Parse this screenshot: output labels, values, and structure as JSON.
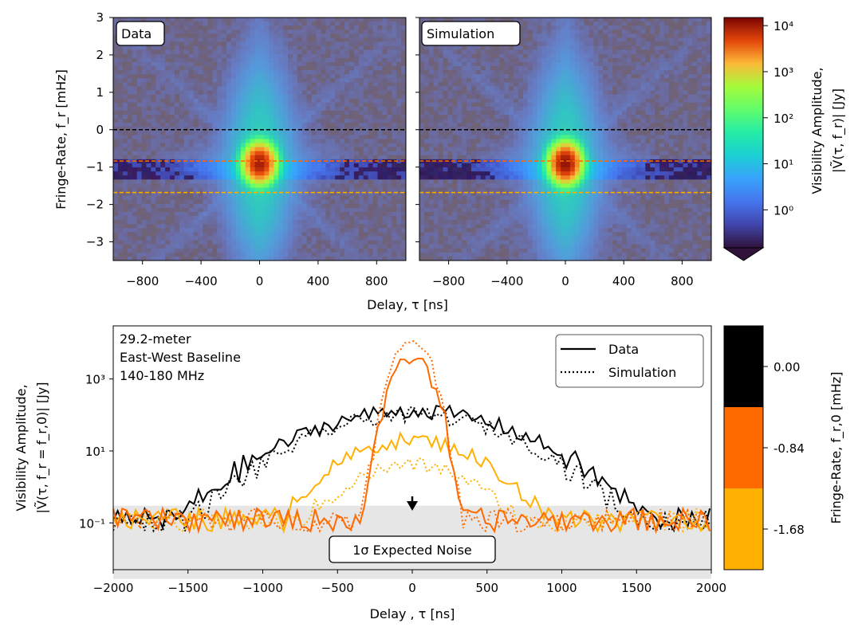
{
  "colors": {
    "data": "#000000",
    "fr_0_00": "#000000",
    "fr_m0_84": "#ff6a00",
    "fr_m1_68": "#ffb000",
    "noise_band": "#e6e6e6",
    "wf_background": "#8f8a94",
    "wf_blue": "#6fa8e8",
    "wf_dark_band": "#2c1a55"
  },
  "chart_data": [
    {
      "type": "heatmap",
      "panel": "Data",
      "label": "Data",
      "xlabel": "Delay, τ [ns]",
      "ylabel": "Fringe-Rate, f_r [mHz]",
      "xlim": [
        -1000,
        1000
      ],
      "ylim": [
        -3.5,
        3
      ],
      "xticks": [
        "−800",
        "−400",
        "0",
        "400",
        "800"
      ],
      "yticks": [
        "3",
        "2",
        "1",
        "0",
        "−1",
        "−2",
        "−3"
      ],
      "peak": {
        "delay_ns": 0,
        "fringe_rate_mHz": -0.9,
        "amplitude_Jy": 10000
      },
      "reference_lines_mHz": [
        0.0,
        -0.84,
        -1.68
      ]
    },
    {
      "type": "heatmap",
      "panel": "Simulation",
      "label": "Simulation",
      "xlabel": "Delay, τ [ns]",
      "xlim": [
        -1000,
        1000
      ],
      "ylim": [
        -3.5,
        3
      ],
      "xticks": [
        "−800",
        "−400",
        "0",
        "400",
        "800"
      ],
      "peak": {
        "delay_ns": 0,
        "fringe_rate_mHz": -0.9,
        "amplitude_Jy": 12000
      },
      "reference_lines_mHz": [
        0.0,
        -0.84,
        -1.68
      ]
    },
    {
      "type": "colorbar",
      "label_line1": "Visibility Amplitude,",
      "label_line2": "|Ṽ(τ, f_r)| [Jy]",
      "scale": "log",
      "ticks": [
        "10⁴",
        "10³",
        "10²",
        "10¹",
        "10⁰"
      ]
    },
    {
      "type": "line",
      "xlabel": "Delay , τ [ns]",
      "ylabel_line1": "Visibility Amplitude,",
      "ylabel_line2": "|Ṽ(τ, f_r = f_r,0)| [Jy]",
      "xlim": [
        -2000,
        2000
      ],
      "ylim": [
        0.005,
        30000
      ],
      "yscale": "log",
      "xticks": [
        "−2000",
        "−1500",
        "−1000",
        "−500",
        "0",
        "500",
        "1000",
        "1500",
        "2000"
      ],
      "yticks": [
        "10³",
        "10¹",
        "10⁻¹"
      ],
      "annotation_lines": [
        "29.2-meter",
        "East-West Baseline",
        "140-180 MHz"
      ],
      "noise_label": "1σ Expected Noise",
      "noise_level": 0.3,
      "legend": [
        {
          "name": "Data",
          "style": "solid"
        },
        {
          "name": "Simulation",
          "style": "dotted"
        }
      ],
      "series": [
        {
          "fringe_rate_mHz": 0.0,
          "kind": "data",
          "peak": 130,
          "width_ns": 420
        },
        {
          "fringe_rate_mHz": 0.0,
          "kind": "simulation",
          "peak": 100,
          "width_ns": 400
        },
        {
          "fringe_rate_mHz": -0.84,
          "kind": "data",
          "peak": 4000,
          "width_ns": 75
        },
        {
          "fringe_rate_mHz": -0.84,
          "kind": "simulation",
          "peak": 13000,
          "width_ns": 70
        },
        {
          "fringe_rate_mHz": -1.68,
          "kind": "data",
          "peak": 20,
          "width_ns": 280
        },
        {
          "fringe_rate_mHz": -1.68,
          "kind": "simulation",
          "peak": 4,
          "width_ns": 260
        }
      ]
    },
    {
      "type": "colorbar",
      "label": "Fringe-Rate, f_r,0 [mHz]",
      "categories": [
        "0.00",
        "-0.84",
        "-1.68"
      ]
    }
  ]
}
